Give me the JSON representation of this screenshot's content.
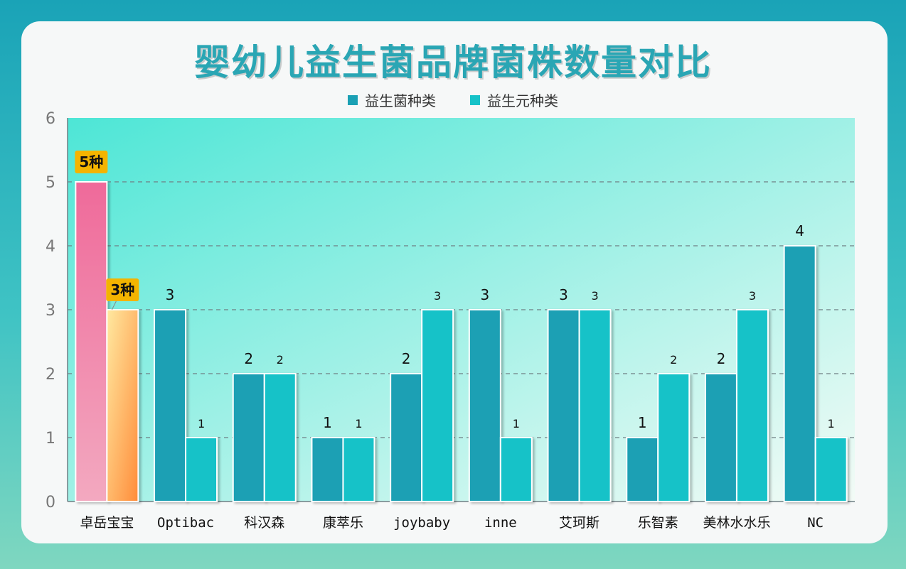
{
  "chart_data": {
    "type": "bar",
    "title": "婴幼儿益生菌品牌菌株数量对比",
    "categories": [
      "卓岳宝宝",
      "Optibac",
      "科汉森",
      "康萃乐",
      "joybaby",
      "inne",
      "艾珂斯",
      "乐智素",
      "美林水水乐",
      "NC"
    ],
    "series": [
      {
        "name": "益生菌种类",
        "values": [
          5,
          3,
          2,
          1,
          2,
          3,
          3,
          1,
          2,
          4
        ],
        "color": "#1aa0b4"
      },
      {
        "name": "益生元种类",
        "values": [
          3,
          1,
          2,
          1,
          3,
          1,
          3,
          2,
          3,
          1
        ],
        "color": "#16c2c8"
      }
    ],
    "ylim": [
      0,
      6
    ],
    "yticks": [
      0,
      1,
      2,
      3,
      4,
      5,
      6
    ],
    "grid": "dashed horizontal",
    "legend_position": "top-center",
    "highlight": {
      "category_index": 0,
      "callouts": [
        "5种",
        "3种"
      ],
      "callout_color": "#f4b400",
      "series0_gradient": [
        "#ef6a9a",
        "#f3a9c0"
      ],
      "series1_gradient": [
        "#ffe9a0",
        "#ff8c3a"
      ]
    },
    "plot_background": [
      "#4de6d6",
      "#f3fbf6"
    ]
  }
}
